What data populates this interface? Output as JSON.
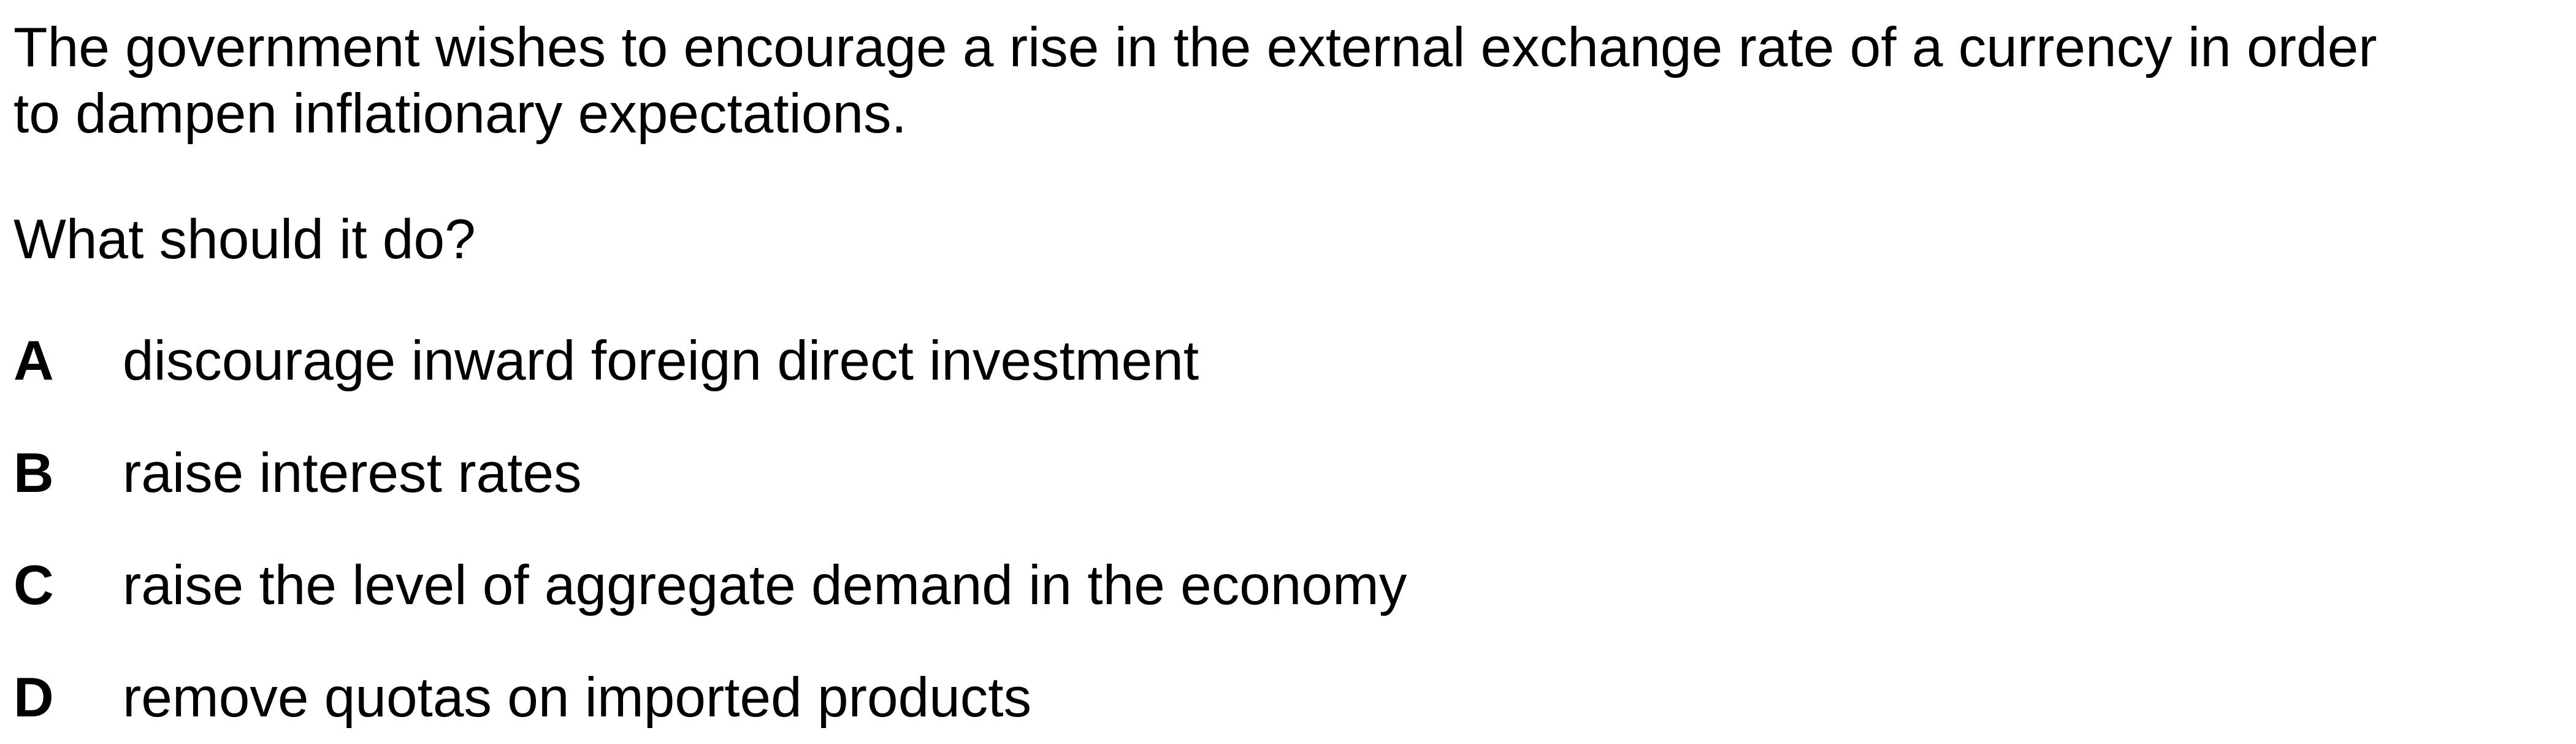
{
  "question": {
    "stem": "The government wishes to encourage a rise in the external exchange rate of a currency in order\nto dampen inflationary expectations.",
    "prompt": "What should it do?"
  },
  "options": [
    {
      "letter": "A",
      "text": "discourage inward foreign direct investment"
    },
    {
      "letter": "B",
      "text": "raise interest rates"
    },
    {
      "letter": "C",
      "text": "raise the level of aggregate demand in the economy"
    },
    {
      "letter": "D",
      "text": "remove quotas on imported products"
    }
  ]
}
